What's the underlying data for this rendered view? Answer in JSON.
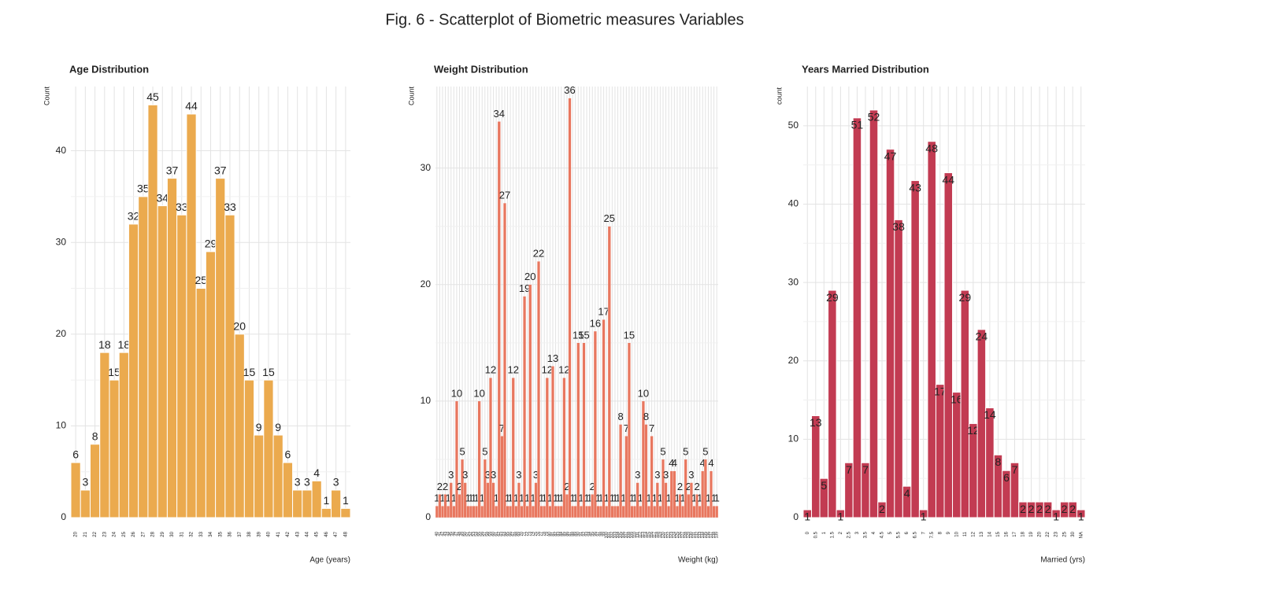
{
  "title": "Fig. 6 - Scatterplot of Biometric measures Variables",
  "chart_data": [
    {
      "type": "bar",
      "title": "Age Distribution",
      "x_label": "Age (years)",
      "y_label": "Count",
      "color": "#EBAA4E",
      "label_position": "outside",
      "grid": true,
      "categories": [
        "20",
        "21",
        "22",
        "23",
        "24",
        "25",
        "26",
        "27",
        "28",
        "29",
        "30",
        "31",
        "32",
        "33",
        "34",
        "35",
        "36",
        "37",
        "38",
        "39",
        "40",
        "41",
        "42",
        "43",
        "44",
        "45",
        "46",
        "47",
        "48"
      ],
      "values": [
        6,
        3,
        8,
        18,
        15,
        18,
        32,
        35,
        45,
        34,
        37,
        33,
        44,
        25,
        29,
        37,
        33,
        20,
        15,
        9,
        15,
        9,
        6,
        3,
        3,
        4,
        1,
        3,
        1
      ],
      "ylim": [
        0,
        47
      ],
      "yticks": [
        0,
        10,
        20,
        30,
        40
      ]
    },
    {
      "type": "bar",
      "title": "Weight Distribution",
      "x_label": "Weight (kg)",
      "y_label": "Count",
      "color": "#E8775F",
      "label_position": "outside",
      "grid": true,
      "categories": [
        "40",
        "41",
        "42",
        "43",
        "44",
        "45",
        "46",
        "47",
        "48",
        "49",
        "50",
        "51",
        "52",
        "53",
        "54",
        "55",
        "56",
        "57",
        "58",
        "59",
        "60",
        "61",
        "62",
        "63",
        "64",
        "65",
        "66",
        "67",
        "68",
        "69",
        "70",
        "71",
        "72",
        "73",
        "74",
        "75",
        "76",
        "77",
        "78",
        "79",
        "80",
        "81",
        "82",
        "83",
        "84",
        "85",
        "86",
        "87",
        "88",
        "89",
        "90",
        "91",
        "92",
        "93",
        "94",
        "95",
        "96",
        "97",
        "98",
        "99",
        "100",
        "101",
        "102",
        "103",
        "104",
        "105",
        "106",
        "107",
        "108",
        "109",
        "110",
        "111",
        "112",
        "113",
        "114",
        "115",
        "116",
        "117",
        "118",
        "119",
        "120",
        "121",
        "122",
        "123",
        "124",
        "125",
        "126",
        "127",
        "128",
        "129",
        "130",
        "131",
        "132",
        "133",
        "134",
        "135",
        "136",
        "137",
        "138",
        "139"
      ],
      "values": [
        1,
        2,
        1,
        2,
        1,
        3,
        1,
        10,
        2,
        5,
        3,
        1,
        1,
        1,
        1,
        10,
        1,
        5,
        3,
        12,
        3,
        1,
        34,
        7,
        27,
        1,
        1,
        12,
        1,
        3,
        1,
        19,
        1,
        20,
        1,
        3,
        22,
        1,
        1,
        12,
        1,
        13,
        1,
        1,
        1,
        12,
        2,
        36,
        1,
        1,
        15,
        1,
        15,
        1,
        1,
        2,
        16,
        1,
        1,
        17,
        1,
        25,
        1,
        1,
        1,
        8,
        1,
        7,
        15,
        1,
        1,
        3,
        1,
        10,
        8,
        1,
        7,
        1,
        3,
        1,
        5,
        3,
        1,
        4,
        4,
        1,
        2,
        1,
        5,
        2,
        3,
        1,
        2,
        1,
        4,
        5,
        1,
        4,
        1,
        1
      ],
      "ylim": [
        0,
        37
      ],
      "yticks": [
        0,
        10,
        20,
        30
      ]
    },
    {
      "type": "bar",
      "title": "Years Married Distribution",
      "x_label": "Married (yrs)",
      "y_label": "count",
      "color": "#C23B52",
      "label_position": "inside",
      "grid": true,
      "categories": [
        "0",
        "0.5",
        "1",
        "1.5",
        "2",
        "2.5",
        "3",
        "3.5",
        "4",
        "4.5",
        "5",
        "5.5",
        "6",
        "6.5",
        "7",
        "7.5",
        "8",
        "9",
        "10",
        "11",
        "12",
        "13",
        "14",
        "15",
        "16",
        "17",
        "18",
        "19",
        "20",
        "22",
        "23",
        "25",
        "30",
        "NA"
      ],
      "values": [
        1,
        13,
        5,
        29,
        1,
        7,
        51,
        7,
        52,
        2,
        47,
        38,
        4,
        43,
        1,
        48,
        17,
        44,
        16,
        29,
        12,
        24,
        14,
        8,
        6,
        7,
        2,
        2,
        2,
        2,
        1,
        2,
        2,
        1
      ],
      "ylim": [
        0,
        55
      ],
      "yticks": [
        0,
        10,
        20,
        30,
        40,
        50
      ]
    }
  ]
}
